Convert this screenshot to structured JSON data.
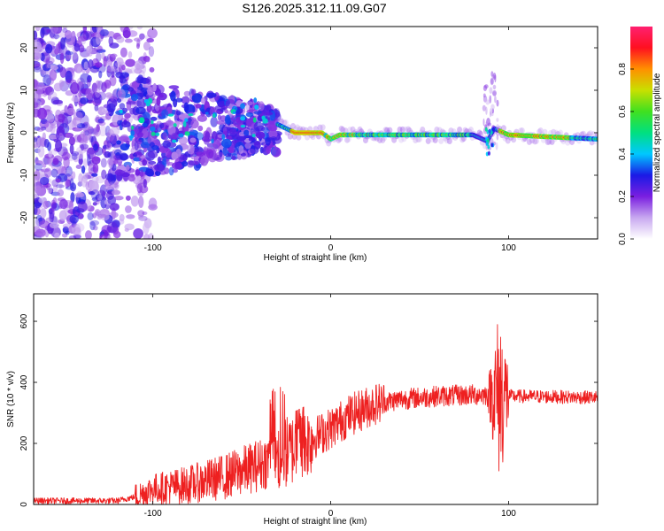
{
  "chart_data": [
    {
      "type": "heatmap",
      "title": "S126.2025.312.11.09.G07",
      "xlabel": "Height of straight line (km)",
      "ylabel": "Frequency (Hz)",
      "xlim": [
        -167,
        150
      ],
      "ylim": [
        -25,
        25
      ],
      "xticks": [
        -100,
        0,
        100
      ],
      "xtick_labels": [
        "-100",
        "0",
        "100"
      ],
      "yticks": [
        -20,
        -10,
        0,
        10,
        20
      ],
      "ytick_labels": [
        "-20",
        "-10",
        "0",
        "10",
        "20"
      ],
      "colorbar": {
        "label": "Normalized spectral amplitude",
        "range": [
          0,
          1
        ],
        "ticks": [
          0.0,
          0.2,
          0.4,
          0.6,
          0.8
        ],
        "tick_labels": [
          "0.0",
          "0.2",
          "0.4",
          "0.6",
          "0.8"
        ],
        "colormap": [
          "#ffffff",
          "#c8a8f0",
          "#7a1fe0",
          "#1a1ae6",
          "#00c8ff",
          "#00e080",
          "#40e020",
          "#c8e000",
          "#ff9000",
          "#ff1020",
          "#ff2070"
        ]
      },
      "ridge": [
        {
          "x": -35,
          "y": 3
        },
        {
          "x": -30,
          "y": 2
        },
        {
          "x": -20,
          "y": 0
        },
        {
          "x": -5,
          "y": 0
        },
        {
          "x": 0,
          "y": -1.5
        },
        {
          "x": 5,
          "y": -0.5
        },
        {
          "x": 40,
          "y": -0.5
        },
        {
          "x": 80,
          "y": -0.5
        },
        {
          "x": 88,
          "y": -2
        },
        {
          "x": 92,
          "y": 1
        },
        {
          "x": 100,
          "y": -0.5
        },
        {
          "x": 150,
          "y": -1.5
        }
      ]
    },
    {
      "type": "line",
      "xlabel": "Height of straight line (km)",
      "ylabel": "SNR (10 * v/v)",
      "xlim": [
        -167,
        150
      ],
      "ylim": [
        0,
        690
      ],
      "xticks": [
        -100,
        0,
        100
      ],
      "xtick_labels": [
        "-100",
        "0",
        "100"
      ],
      "yticks": [
        0,
        200,
        400,
        600
      ],
      "ytick_labels": [
        "0",
        "200",
        "400",
        "600"
      ],
      "color": "#ee2020",
      "envelope": [
        {
          "x": -167,
          "y": 12
        },
        {
          "x": -120,
          "y": 12
        },
        {
          "x": -110,
          "y": 25
        },
        {
          "x": -100,
          "y": 50
        },
        {
          "x": -80,
          "y": 65
        },
        {
          "x": -60,
          "y": 90
        },
        {
          "x": -40,
          "y": 130
        },
        {
          "x": -25,
          "y": 170
        },
        {
          "x": -15,
          "y": 200
        },
        {
          "x": 0,
          "y": 250
        },
        {
          "x": 10,
          "y": 290
        },
        {
          "x": 25,
          "y": 330
        },
        {
          "x": 40,
          "y": 345
        },
        {
          "x": 60,
          "y": 355
        },
        {
          "x": 85,
          "y": 360
        },
        {
          "x": 100,
          "y": 355
        },
        {
          "x": 150,
          "y": 350
        }
      ]
    }
  ]
}
